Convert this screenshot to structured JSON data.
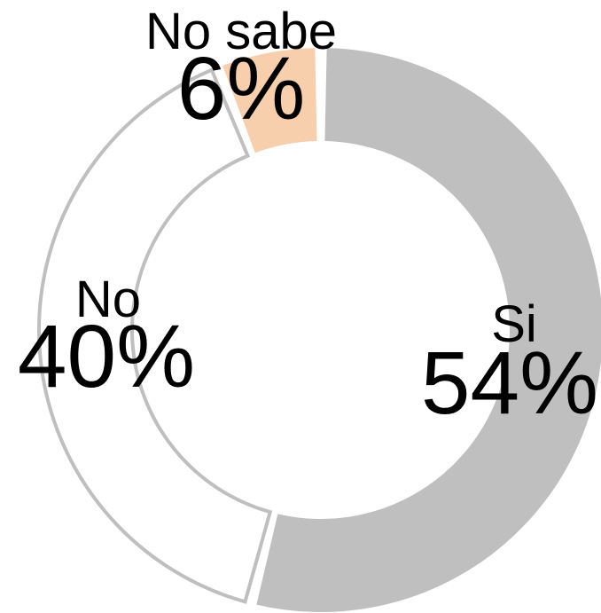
{
  "chart_data": {
    "type": "pie",
    "variant": "donut",
    "categories": [
      "Si",
      "No",
      "No sabe"
    ],
    "values": [
      54,
      40,
      6
    ],
    "value_labels": [
      "54%",
      "40%",
      "6%"
    ],
    "colors": [
      "#bfbfbf",
      "#ffffff",
      "#f8cfad"
    ],
    "outline_color": "#bfbfbf",
    "start_angle_deg": 0,
    "direction": "clockwise",
    "legend": "none"
  }
}
